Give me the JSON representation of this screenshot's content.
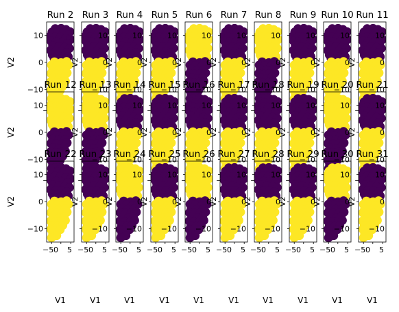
{
  "chart_data": {
    "type": "scatter",
    "layout": "3x10 grid of small-multiple scatter panels",
    "xlabel": "V1",
    "ylabel": "V2",
    "xticks": [
      "−5",
      "0",
      "5"
    ],
    "yticks": [
      "10",
      "0",
      "−10"
    ],
    "ylim": [
      -15,
      15
    ],
    "y_inner_labels": [
      "10",
      "0",
      "−10"
    ],
    "colors": {
      "cluster_a": "#440154",
      "cluster_b": "#fde725"
    },
    "partition_patterns": {
      "A": {
        "upper": "cluster_a",
        "lower": "cluster_b",
        "mid_y": 1
      },
      "B": {
        "upper": "cluster_b",
        "lower": "cluster_a",
        "mid_y": 1
      }
    },
    "points": [
      [
        -1.5,
        12.5
      ],
      [
        0.5,
        12.6
      ],
      [
        2.2,
        12.2
      ],
      [
        3.6,
        11.4
      ],
      [
        -2.6,
        11.3
      ],
      [
        -0.8,
        11.0
      ],
      [
        1.2,
        10.9
      ],
      [
        3.0,
        10.2
      ],
      [
        -3.2,
        9.8
      ],
      [
        -1.6,
        9.4
      ],
      [
        0.3,
        9.3
      ],
      [
        2.1,
        8.9
      ],
      [
        3.8,
        8.5
      ],
      [
        -3.0,
        7.9
      ],
      [
        -1.2,
        7.6
      ],
      [
        0.9,
        7.3
      ],
      [
        2.8,
        7.0
      ],
      [
        -2.4,
        6.2
      ],
      [
        -0.2,
        5.9
      ],
      [
        1.8,
        5.6
      ],
      [
        3.4,
        5.2
      ],
      [
        -3.1,
        4.5
      ],
      [
        -1.3,
        4.2
      ],
      [
        0.7,
        4.0
      ],
      [
        2.5,
        3.6
      ],
      [
        -2.5,
        2.8
      ],
      [
        -0.6,
        2.5
      ],
      [
        1.4,
        2.3
      ],
      [
        3.0,
        2.1
      ],
      [
        -1.9,
        1.5
      ],
      [
        0.3,
        1.3
      ],
      [
        2.2,
        1.4
      ],
      [
        -1.8,
        0.2
      ],
      [
        0.5,
        -0.1
      ],
      [
        2.4,
        0.3
      ],
      [
        -2.8,
        -1.0
      ],
      [
        -0.9,
        -1.2
      ],
      [
        1.3,
        -1.4
      ],
      [
        3.1,
        -1.0
      ],
      [
        -2.4,
        -2.6
      ],
      [
        -0.3,
        -2.9
      ],
      [
        1.9,
        -2.7
      ],
      [
        -3.0,
        -4.1
      ],
      [
        -1.2,
        -4.4
      ],
      [
        0.8,
        -4.2
      ],
      [
        2.6,
        -3.9
      ],
      [
        -2.2,
        -5.8
      ],
      [
        -0.2,
        -6.1
      ],
      [
        1.6,
        -5.6
      ],
      [
        -3.1,
        -7.2
      ],
      [
        -1.4,
        -7.5
      ],
      [
        0.6,
        -7.3
      ],
      [
        2.0,
        -7.0
      ],
      [
        -2.5,
        -8.9
      ],
      [
        -0.7,
        -9.2
      ],
      [
        1.1,
        -8.8
      ],
      [
        -3.0,
        -10.3
      ],
      [
        -1.6,
        -10.7
      ],
      [
        0.2,
        -10.4
      ],
      [
        -2.4,
        -12.0
      ],
      [
        -1.0,
        -12.6
      ],
      [
        -2.8,
        -13.4
      ]
    ],
    "rows": [
      {
        "titles": [
          "Run 2",
          "Run 3",
          "Run 4",
          "Run 5",
          "Run 6",
          "Run 7",
          "Run 8",
          "Run 9",
          "Run 10",
          "Run 11"
        ],
        "patterns": [
          "A",
          "A",
          "A",
          "A",
          "B",
          "A",
          "B",
          "A",
          "A",
          "A"
        ]
      },
      {
        "titles": [
          "Run 12",
          "Run 13",
          "Run 14",
          "Run 15",
          "Run 16",
          "Run 17",
          "Run 18",
          "Run 19",
          "Run 20",
          "Run 21"
        ],
        "patterns": [
          "B",
          "B",
          "A",
          "A",
          "A",
          "A",
          "A",
          "A",
          "B",
          "A"
        ]
      },
      {
        "titles": [
          "Run 22",
          "Run 23",
          "Run 24",
          "Run 25",
          "Run 26",
          "Run 27",
          "Run 28",
          "Run 29",
          "Run 30",
          "Run 31"
        ],
        "patterns": [
          "A",
          "A",
          "B",
          "A",
          "B",
          "A",
          "A",
          "A",
          "B",
          "A"
        ]
      }
    ]
  }
}
